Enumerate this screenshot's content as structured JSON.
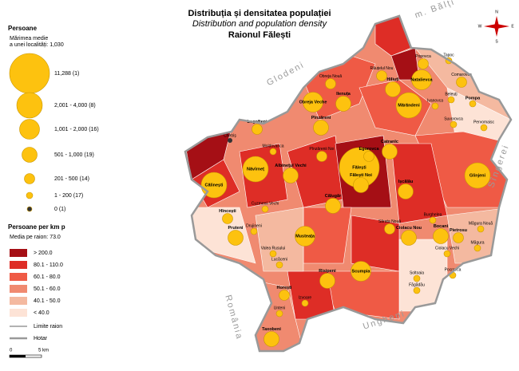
{
  "title": {
    "ro": "Distribuția și densitatea populației",
    "en": "Distribution and population density",
    "region": "Raionul Fălești"
  },
  "legend_persons": {
    "title": "Persoane",
    "subtitle": [
      "Mărimea medie",
      "a unei localități: 1,030"
    ],
    "classes": [
      "11,288 (1)",
      "2,001 - 4,000 (8)",
      "1,001 - 2,000 (16)",
      "501 - 1,000 (19)",
      "201 - 500 (14)",
      "1 - 200 (17)",
      "0 (1)"
    ]
  },
  "legend_density": {
    "title": "Persoane per km p",
    "subtitle": "Media pe raion: 73.0",
    "classes": [
      "> 200.0",
      "80.1 - 110.0",
      "60.1 - 80.0",
      "50.1 - 60.0",
      "40.1 - 50.0",
      "< 40.0"
    ],
    "colors": [
      "#a50f15",
      "#de2d26",
      "#ef5a45",
      "#f08a70",
      "#f4b9a0",
      "#fde3d6"
    ]
  },
  "legend_lines": [
    "Limite raion",
    "Hotar"
  ],
  "scale": [
    "0",
    "5 km"
  ],
  "neighbors": [
    "m. Bălți",
    "Glodeni",
    "Sîngerei",
    "România",
    "Ungheni"
  ],
  "compass": [
    "N",
    "S",
    "W",
    "E"
  ],
  "places": [
    "Popovca",
    "Tapoc",
    "Natalievca",
    "Comarovca",
    "Răuțelul Nou",
    "Hiliuți",
    "Obreja Nouă",
    "Obreja Veche",
    "Ilenuța",
    "Mărăndeni",
    "Beleuți",
    "Pompa",
    "Ivanovca",
    "Suvorovca",
    "Pervomaisc",
    "Logofteni",
    "Moldovanca",
    "Pînzăreni",
    "Călinești",
    "Năvîrneț",
    "Catranîc",
    "Glinjeni",
    "Fălești",
    "Egorovca",
    "Fălești Noi",
    "Ișcălău",
    "Albinețul Vechi",
    "Pînzărenii Noi",
    "Călugăr",
    "Hîncești",
    "Pruteni",
    "Musteața",
    "Ciolacu Nou",
    "Bocani",
    "Pietrosu",
    "Scumpia",
    "Risipeni",
    "Horești",
    "Unteni",
    "Taxobeni",
    "Izvoare",
    "Lucăceni",
    "Valea Rusului",
    "Drujineni",
    "Cuzmenii Vechi",
    "Burghelea",
    "Măgura Nouă",
    "Măgura",
    "Ciolacu Vechi",
    "Pocrovca",
    "Soltoaia",
    "Făgădău",
    "Chetriș",
    "Sărata Nouă"
  ]
}
